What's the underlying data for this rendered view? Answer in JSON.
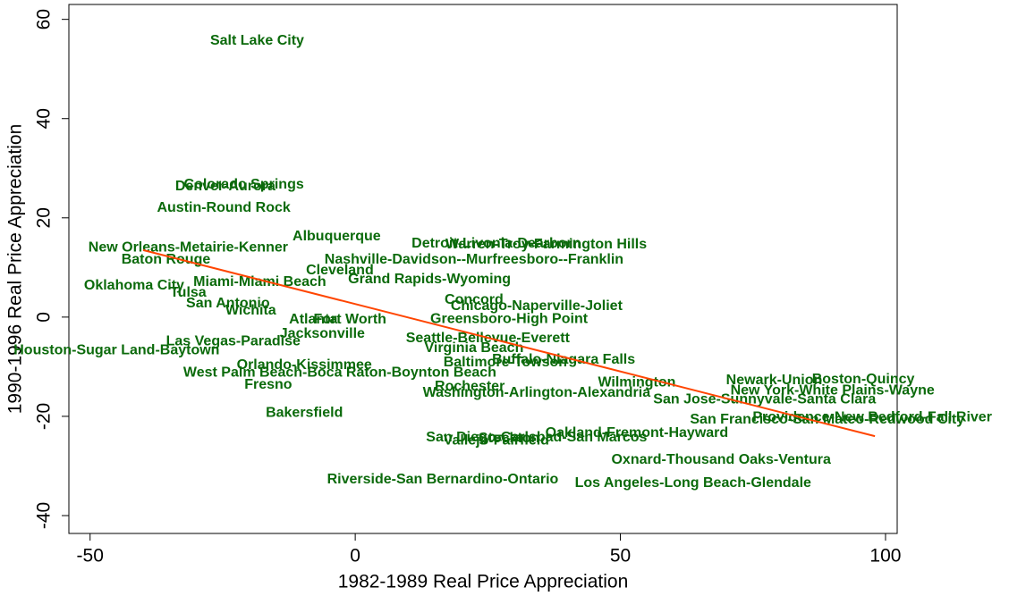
{
  "chart_data": {
    "type": "scatter",
    "xlabel": "1982-1989 Real Price Appreciation",
    "ylabel": "1990-1996 Real Price Appreciation",
    "xlim": [
      -54,
      102.2
    ],
    "ylim": [
      -43.6,
      63
    ],
    "xticks": [
      -50,
      0,
      50,
      100
    ],
    "yticks": [
      -40,
      -20,
      0,
      20,
      40,
      60
    ],
    "color": "#0b6a0b",
    "labels": [
      "Salt Lake City",
      "Colorado Springs",
      "Denver-Aurora",
      "Austin-Round Rock",
      "Albuquerque",
      "New Orleans-Metairie-Kenner",
      "Baton Rouge",
      "Detroit-Livonia-Dearborn",
      "Warren-Troy-Farmington Hills",
      "Nashville-Davidson--Murfreesboro--Franklin",
      "Cleveland",
      "Oklahoma City",
      "Miami-Miami Beach",
      "Tulsa",
      "San Antonio",
      "Wichita",
      "Grand Rapids-Wyoming",
      "Concord",
      "Chicago-Naperville-Joliet",
      "Atlanta",
      "Fort Worth",
      "Greensboro-High Point",
      "Jacksonville",
      "Seattle-Bellevue-Everett",
      "Houston-Sugar Land-Baytown",
      "Las Vegas-Paradise",
      "Virginia Beach",
      "Buffalo-Niagara Falls",
      "Baltimore-Towson",
      "Orlando-Kissimmee",
      "West Palm Beach-Boca Raton-Boynton Beach",
      "Fresno",
      "Bakersfield",
      "Rochester",
      "Washington-Arlington-Alexandria",
      "Wilmington",
      "San Jose-Sunnyvale-Santa Clara",
      "Newark-Union",
      "Boston-Quincy",
      "New York-White Plains-Wayne",
      "San Francisco-San Mateo-Redwood City",
      "Providence-New Bedford-Fall River",
      "Oakland-Fremont-Hayward",
      "San Diego-Carlsbad-San Marcos",
      "Vallejo-Fairfield",
      "Stockton",
      "Oxnard-Thousand Oaks-Ventura",
      "Riverside-San Bernardino-Ontario",
      "Los Angeles-Long Beach-Glendale"
    ],
    "x": [
      -18.5,
      -21,
      -24.5,
      -24.8,
      -3.5,
      -31.5,
      -35.7,
      26.6,
      36,
      22.4,
      -2.9,
      -41.7,
      -18,
      -31.5,
      -24,
      -19.7,
      14,
      22.4,
      34.2,
      -7.9,
      -1,
      29,
      -6.2,
      25,
      -45,
      -23,
      22.4,
      39.3,
      28.3,
      -9.6,
      -2.9,
      -16.4,
      -9.6,
      21.6,
      34.2,
      53.1,
      77.2,
      79,
      95.8,
      90,
      89,
      97.5,
      53.1,
      34.2,
      26.6,
      29,
      69,
      16.5,
      63.7
    ],
    "y": [
      55.7,
      26.7,
      26.3,
      22,
      16.2,
      14,
      11.5,
      14.8,
      14.6,
      11.5,
      9.4,
      6.3,
      7,
      4.9,
      2.7,
      1.3,
      7.6,
      3.4,
      2.2,
      -0.5,
      -0.5,
      -0.4,
      -3.4,
      -4.3,
      -6.7,
      -4.9,
      -6.3,
      -8.6,
      -9.2,
      -9.7,
      -11.2,
      -13.7,
      -19.3,
      -14,
      -15.3,
      -13.2,
      -16.6,
      -12.8,
      -12.6,
      -14.8,
      -20.7,
      -20.2,
      -23.4,
      -24.3,
      -24.9,
      -24.5,
      -28.8,
      -32.8,
      -33.5
    ],
    "fit_line": {
      "x": [
        -40,
        98
      ],
      "y": [
        13.5,
        -24
      ],
      "color": "#ff4500"
    }
  }
}
